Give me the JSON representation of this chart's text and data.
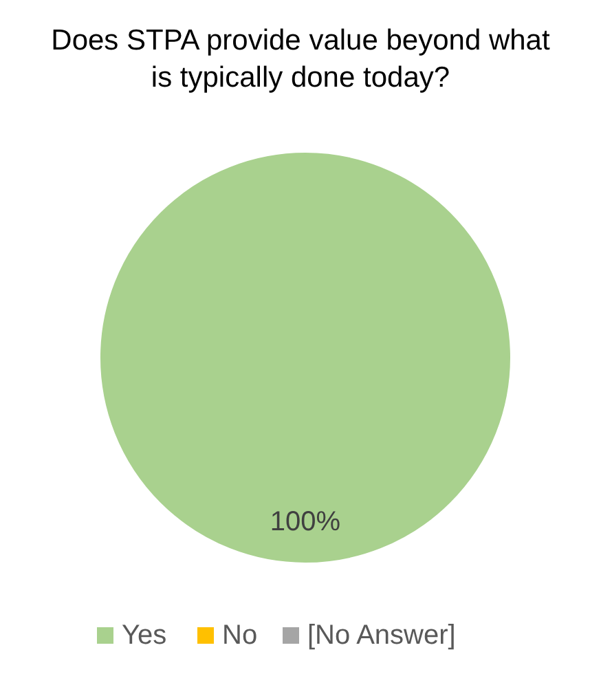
{
  "chart_data": {
    "type": "pie",
    "title": "Does STPA provide value beyond what is typically done today?",
    "categories": [
      "Yes",
      "No",
      "[No Answer]"
    ],
    "values": [
      100,
      0,
      0
    ],
    "colors": [
      "#a9d18e",
      "#ffc000",
      "#a5a5a5"
    ],
    "value_labels": [
      "100%",
      null,
      null
    ],
    "legend": "bottom"
  }
}
